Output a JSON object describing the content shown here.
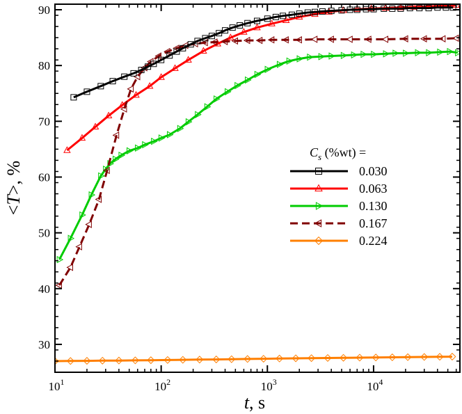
{
  "chart_data": {
    "type": "line",
    "title": "",
    "xlabel_var": "t",
    "xlabel_unit": ", s",
    "ylabel_open": "<",
    "ylabel_var": "T",
    "ylabel_close": ">",
    "ylabel_unit": ", %",
    "xscale": "log",
    "xlim": [
      10,
      65000
    ],
    "ylim": [
      25,
      91
    ],
    "x_ticks": [
      {
        "value": 10,
        "base": "10",
        "exp": "1"
      },
      {
        "value": 100,
        "base": "10",
        "exp": "2"
      },
      {
        "value": 1000,
        "base": "10",
        "exp": "3"
      },
      {
        "value": 10000,
        "base": "10",
        "exp": "4"
      }
    ],
    "y_ticks": [
      {
        "value": 30,
        "label": "30"
      },
      {
        "value": 40,
        "label": "40"
      },
      {
        "value": 50,
        "label": "50"
      },
      {
        "value": 60,
        "label": "60"
      },
      {
        "value": 70,
        "label": "70"
      },
      {
        "value": 80,
        "label": "80"
      },
      {
        "value": 90,
        "label": "90"
      }
    ],
    "legend": {
      "title_var": "C",
      "title_sub": "s",
      "title_rest": " (%wt) =",
      "position": "center-right"
    },
    "series": [
      {
        "name": "0.030",
        "color": "#000000",
        "dash": "solid",
        "marker": "square",
        "x": [
          15,
          20,
          27,
          35,
          45,
          55,
          65,
          75,
          85,
          100,
          120,
          140,
          160,
          190,
          220,
          260,
          300,
          350,
          400,
          470,
          550,
          650,
          800,
          1000,
          1200,
          1400,
          1700,
          2000,
          2400,
          2800,
          3300,
          4000,
          5000,
          6000,
          7000,
          8500,
          10000,
          12500,
          15000,
          18000,
          22000,
          27000,
          33000,
          40000,
          48000,
          56000
        ],
        "values": [
          74.3,
          75.3,
          76.3,
          77.2,
          78,
          78.6,
          79.2,
          79.8,
          80.3,
          81,
          81.8,
          82.5,
          83.1,
          83.8,
          84.4,
          84.9,
          85.3,
          85.8,
          86.3,
          86.8,
          87.2,
          87.6,
          88,
          88.4,
          88.7,
          88.9,
          89.1,
          89.3,
          89.5,
          89.6,
          89.7,
          89.8,
          89.9,
          90,
          90,
          90.1,
          90.1,
          90.2,
          90.2,
          90.2,
          90.3,
          90.3,
          90.3,
          90.4,
          90.4,
          90.4
        ]
      },
      {
        "name": "0.063",
        "color": "#ff0000",
        "dash": "solid",
        "marker": "triangle-up",
        "x": [
          13,
          18,
          24,
          32,
          43,
          58,
          78,
          100,
          135,
          180,
          250,
          340,
          450,
          600,
          800,
          1100,
          1500,
          2000,
          2800,
          3800,
          5200,
          7000,
          9500,
          13000,
          18000,
          24000,
          33000,
          45000,
          60000
        ],
        "values": [
          64.8,
          67,
          69,
          71,
          72.9,
          74.7,
          76.3,
          77.9,
          79.5,
          81,
          82.6,
          83.9,
          85,
          86,
          86.8,
          87.5,
          88.1,
          88.7,
          89.2,
          89.6,
          89.9,
          90.1,
          90.2,
          90.3,
          90.4,
          90.5,
          90.6,
          90.7,
          90.8
        ]
      },
      {
        "name": "0.130",
        "color": "#00cc00",
        "dash": "solid",
        "marker": "triangle-right",
        "x": [
          11,
          14,
          18,
          22,
          27,
          30,
          33,
          37,
          42,
          50,
          60,
          70,
          85,
          100,
          120,
          150,
          180,
          220,
          270,
          330,
          420,
          520,
          650,
          800,
          1000,
          1300,
          1600,
          2000,
          2500,
          3200,
          4000,
          5200,
          6500,
          8000,
          10000,
          13000,
          16000,
          20000,
          26000,
          33000,
          42000,
          52000,
          62000
        ],
        "values": [
          45.2,
          49,
          53.2,
          56.8,
          60.2,
          61.4,
          62.4,
          63.2,
          63.9,
          64.7,
          65.2,
          65.8,
          66.4,
          67,
          67.6,
          68.7,
          69.9,
          71.2,
          72.6,
          74,
          75.3,
          76.4,
          77.4,
          78.4,
          79.3,
          80.2,
          80.8,
          81.2,
          81.5,
          81.6,
          81.7,
          81.8,
          81.9,
          82,
          82,
          82.1,
          82.2,
          82.2,
          82.3,
          82.3,
          82.4,
          82.5,
          82.3
        ]
      },
      {
        "name": "0.167",
        "color": "#800000",
        "dash": "dashed",
        "marker": "triangle-left",
        "x": [
          11,
          14,
          17,
          21,
          26,
          31,
          38,
          45,
          52,
          60,
          70,
          80,
          95,
          115,
          140,
          170,
          210,
          260,
          320,
          400,
          500,
          650,
          850,
          1100,
          1500,
          2000,
          2800,
          4000,
          6000,
          9000,
          13000,
          20000,
          30000,
          45000,
          60000
        ],
        "values": [
          40.6,
          43.8,
          47.5,
          51.5,
          56,
          61.2,
          67.5,
          72.2,
          75.8,
          78,
          79.6,
          80.7,
          81.7,
          82.5,
          83.1,
          83.6,
          83.9,
          84.1,
          84.2,
          84.3,
          84.4,
          84.5,
          84.5,
          84.6,
          84.6,
          84.6,
          84.7,
          84.7,
          84.7,
          84.7,
          84.7,
          84.8,
          84.8,
          84.8,
          84.9
        ]
      },
      {
        "name": "0.224",
        "color": "#ff7f00",
        "dash": "solid",
        "marker": "diamond",
        "x": [
          10,
          14,
          20,
          28,
          40,
          57,
          80,
          115,
          160,
          230,
          330,
          460,
          650,
          920,
          1300,
          1850,
          2600,
          3700,
          5200,
          7400,
          10500,
          15000,
          21000,
          30000,
          42000,
          55000
        ],
        "values": [
          27,
          27.02,
          27.05,
          27.08,
          27.1,
          27.13,
          27.16,
          27.2,
          27.23,
          27.27,
          27.3,
          27.34,
          27.38,
          27.42,
          27.46,
          27.5,
          27.53,
          27.56,
          27.59,
          27.62,
          27.65,
          27.68,
          27.71,
          27.74,
          27.77,
          27.8
        ]
      }
    ]
  }
}
